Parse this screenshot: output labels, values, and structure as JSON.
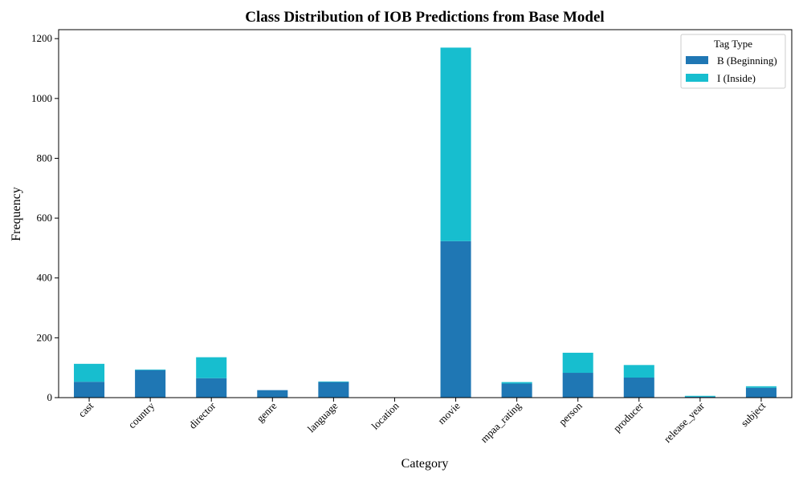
{
  "chart_data": {
    "type": "bar",
    "stacked": true,
    "title": "Class Distribution of IOB Predictions from Base Model",
    "xlabel": "Category",
    "ylabel": "Frequency",
    "ylim": [
      0,
      1230
    ],
    "yticks": [
      0,
      200,
      400,
      600,
      800,
      1000,
      1200
    ],
    "categories": [
      "cast",
      "country",
      "director",
      "genre",
      "language",
      "location",
      "movie",
      "mpaa_rating",
      "person",
      "producer",
      "release_year",
      "subject"
    ],
    "series": [
      {
        "name": "B (Beginning)",
        "color": "#1f77b4",
        "values": [
          53,
          92,
          65,
          25,
          52,
          0,
          523,
          47,
          83,
          67,
          3,
          33
        ]
      },
      {
        "name": "I (Inside)",
        "color": "#17becf",
        "values": [
          60,
          2,
          70,
          0,
          2,
          0,
          647,
          5,
          67,
          42,
          3,
          5
        ]
      }
    ],
    "legend": {
      "title": "Tag Type",
      "placement": "top-right"
    },
    "grid": false
  }
}
